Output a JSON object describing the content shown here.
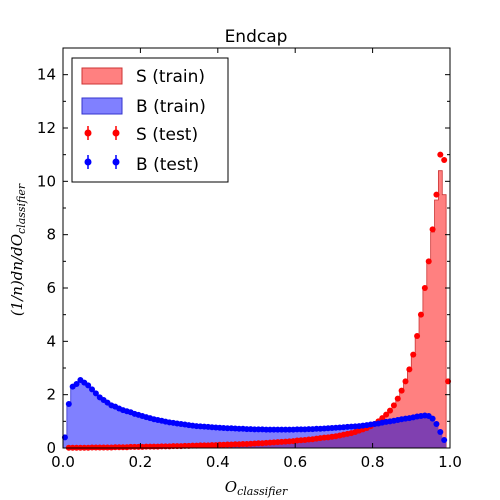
{
  "chart_data": {
    "type": "histogram",
    "title": "Endcap",
    "xlabel": "O_classifier",
    "ylabel": "(1/n)dn/dO_classifier",
    "xlim": [
      0.0,
      1.0
    ],
    "ylim": [
      0,
      15
    ],
    "xticks": [
      "0.0",
      "0.2",
      "0.4",
      "0.6",
      "0.8",
      "1.0"
    ],
    "yticks": [
      "0",
      "2",
      "4",
      "6",
      "8",
      "10",
      "12",
      "14"
    ],
    "legend_position": "top-left",
    "bin_edges_start": 0.0,
    "bin_width": 0.01,
    "colors": {
      "s_train": "#ff8080",
      "s_train_edge": "#cc3333",
      "b_train": "#8080ff",
      "b_train_edge": "#3333cc",
      "s_test": "#ff0000",
      "b_test": "#0000ff",
      "overlap": "#8040b0"
    },
    "series": [
      {
        "name": "S (train)",
        "kind": "filled-step",
        "values": [
          0.0,
          0.01,
          0.01,
          0.01,
          0.01,
          0.01,
          0.01,
          0.02,
          0.02,
          0.02,
          0.02,
          0.02,
          0.02,
          0.03,
          0.03,
          0.03,
          0.03,
          0.04,
          0.04,
          0.04,
          0.04,
          0.05,
          0.05,
          0.05,
          0.05,
          0.06,
          0.06,
          0.06,
          0.07,
          0.07,
          0.07,
          0.08,
          0.08,
          0.09,
          0.09,
          0.1,
          0.1,
          0.1,
          0.11,
          0.11,
          0.12,
          0.12,
          0.13,
          0.13,
          0.14,
          0.14,
          0.15,
          0.15,
          0.16,
          0.17,
          0.18,
          0.18,
          0.19,
          0.2,
          0.21,
          0.22,
          0.23,
          0.24,
          0.25,
          0.26,
          0.28,
          0.29,
          0.3,
          0.32,
          0.33,
          0.35,
          0.37,
          0.39,
          0.4,
          0.42,
          0.44,
          0.47,
          0.5,
          0.53,
          0.56,
          0.6,
          0.65,
          0.7,
          0.75,
          0.82,
          0.9,
          1.0,
          1.12,
          1.25,
          1.4,
          1.6,
          1.85,
          2.15,
          2.5,
          2.95,
          3.5,
          4.2,
          5.0,
          6.0,
          7.0,
          8.1,
          9.3,
          10.4,
          9.5,
          0.0
        ]
      },
      {
        "name": "B (train)",
        "kind": "filled-step",
        "values": [
          0.4,
          1.6,
          2.3,
          2.4,
          2.5,
          2.45,
          2.35,
          2.2,
          2.05,
          1.9,
          1.8,
          1.7,
          1.6,
          1.55,
          1.48,
          1.42,
          1.38,
          1.34,
          1.28,
          1.24,
          1.2,
          1.16,
          1.12,
          1.08,
          1.05,
          1.02,
          0.99,
          0.96,
          0.94,
          0.92,
          0.9,
          0.88,
          0.86,
          0.84,
          0.82,
          0.81,
          0.8,
          0.79,
          0.78,
          0.77,
          0.76,
          0.75,
          0.74,
          0.74,
          0.73,
          0.72,
          0.72,
          0.71,
          0.71,
          0.7,
          0.7,
          0.7,
          0.69,
          0.69,
          0.69,
          0.69,
          0.69,
          0.69,
          0.69,
          0.69,
          0.7,
          0.7,
          0.7,
          0.71,
          0.71,
          0.72,
          0.72,
          0.73,
          0.74,
          0.75,
          0.76,
          0.77,
          0.78,
          0.79,
          0.8,
          0.81,
          0.82,
          0.84,
          0.86,
          0.88,
          0.9,
          0.92,
          0.95,
          0.98,
          1.0,
          1.02,
          1.05,
          1.08,
          1.1,
          1.12,
          1.15,
          1.18,
          1.2,
          1.22,
          1.2,
          1.1,
          0.9,
          0.6,
          0.3,
          0.0
        ]
      },
      {
        "name": "S (test)",
        "kind": "points",
        "values": [
          0.0,
          0.01,
          0.01,
          0.01,
          0.01,
          0.01,
          0.01,
          0.02,
          0.02,
          0.02,
          0.02,
          0.02,
          0.02,
          0.03,
          0.03,
          0.03,
          0.03,
          0.04,
          0.04,
          0.04,
          0.04,
          0.05,
          0.05,
          0.05,
          0.05,
          0.06,
          0.06,
          0.06,
          0.07,
          0.07,
          0.07,
          0.08,
          0.08,
          0.09,
          0.09,
          0.1,
          0.1,
          0.1,
          0.11,
          0.11,
          0.12,
          0.12,
          0.13,
          0.13,
          0.14,
          0.14,
          0.15,
          0.15,
          0.16,
          0.17,
          0.18,
          0.18,
          0.19,
          0.2,
          0.21,
          0.22,
          0.23,
          0.24,
          0.25,
          0.26,
          0.28,
          0.29,
          0.3,
          0.32,
          0.33,
          0.35,
          0.37,
          0.39,
          0.4,
          0.42,
          0.44,
          0.47,
          0.5,
          0.53,
          0.56,
          0.6,
          0.65,
          0.7,
          0.75,
          0.82,
          0.9,
          1.0,
          1.12,
          1.25,
          1.4,
          1.6,
          1.85,
          2.15,
          2.5,
          2.95,
          3.5,
          4.2,
          5.0,
          6.0,
          7.0,
          8.2,
          9.5,
          11.0,
          10.8,
          2.5
        ]
      },
      {
        "name": "B (test)",
        "kind": "points",
        "values": [
          0.4,
          1.65,
          2.3,
          2.4,
          2.55,
          2.45,
          2.35,
          2.2,
          2.05,
          1.9,
          1.8,
          1.7,
          1.6,
          1.55,
          1.48,
          1.42,
          1.38,
          1.34,
          1.28,
          1.24,
          1.2,
          1.16,
          1.12,
          1.08,
          1.05,
          1.02,
          0.99,
          0.96,
          0.94,
          0.92,
          0.9,
          0.88,
          0.86,
          0.84,
          0.82,
          0.81,
          0.8,
          0.79,
          0.78,
          0.77,
          0.76,
          0.75,
          0.74,
          0.74,
          0.73,
          0.72,
          0.72,
          0.71,
          0.71,
          0.7,
          0.7,
          0.7,
          0.69,
          0.69,
          0.69,
          0.69,
          0.69,
          0.69,
          0.69,
          0.69,
          0.7,
          0.7,
          0.7,
          0.71,
          0.71,
          0.72,
          0.72,
          0.73,
          0.74,
          0.75,
          0.76,
          0.77,
          0.78,
          0.79,
          0.8,
          0.81,
          0.82,
          0.84,
          0.86,
          0.88,
          0.9,
          0.92,
          0.95,
          0.98,
          1.0,
          1.02,
          1.05,
          1.08,
          1.1,
          1.12,
          1.15,
          1.18,
          1.2,
          1.22,
          1.2,
          1.1,
          0.9,
          0.6,
          0.3,
          0.0
        ]
      }
    ]
  }
}
